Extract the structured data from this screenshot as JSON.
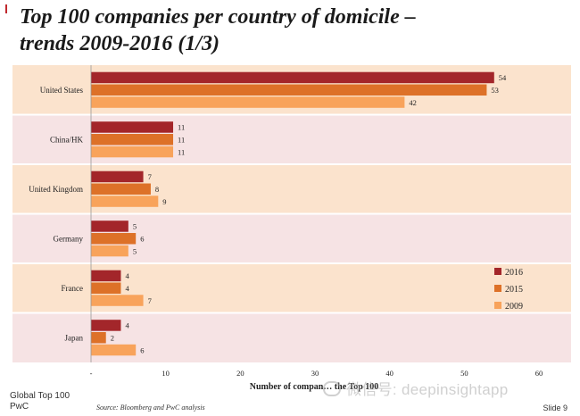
{
  "page": {
    "title_line1": "Top 100 companies per country of domicile –",
    "title_line2": "trends 2009-2016 (1/3)",
    "footer_line1": "Global Top 100",
    "footer_line2": "PwC",
    "source": "Source: Bloomberg and PwC analysis",
    "slide": "Slide 9",
    "watermark": "微信号: deepinsightapp"
  },
  "colors": {
    "band_light": "#fbe3cd",
    "band_pink": "#f6e3e4",
    "s2016": "#a3262a",
    "s2015": "#dd7128",
    "s2009": "#f8a35b"
  },
  "chart_data": {
    "type": "bar",
    "orientation": "horizontal",
    "categories": [
      "United States",
      "China/HK",
      "United Kingdom",
      "Germany",
      "France",
      "Japan"
    ],
    "series": [
      {
        "name": "2016",
        "values": [
          54,
          11,
          7,
          5,
          4,
          4
        ]
      },
      {
        "name": "2015",
        "values": [
          53,
          11,
          8,
          6,
          4,
          2
        ]
      },
      {
        "name": "2009",
        "values": [
          42,
          11,
          9,
          5,
          7,
          6
        ]
      }
    ],
    "xlim": [
      0,
      60
    ],
    "xticks": [
      0,
      10,
      20,
      30,
      40,
      50,
      60
    ],
    "xtick_labels": [
      "-",
      "10",
      "20",
      "30",
      "40",
      "50",
      "60"
    ],
    "xlabel": "Number of compan… the Top 100",
    "legend": "right"
  }
}
